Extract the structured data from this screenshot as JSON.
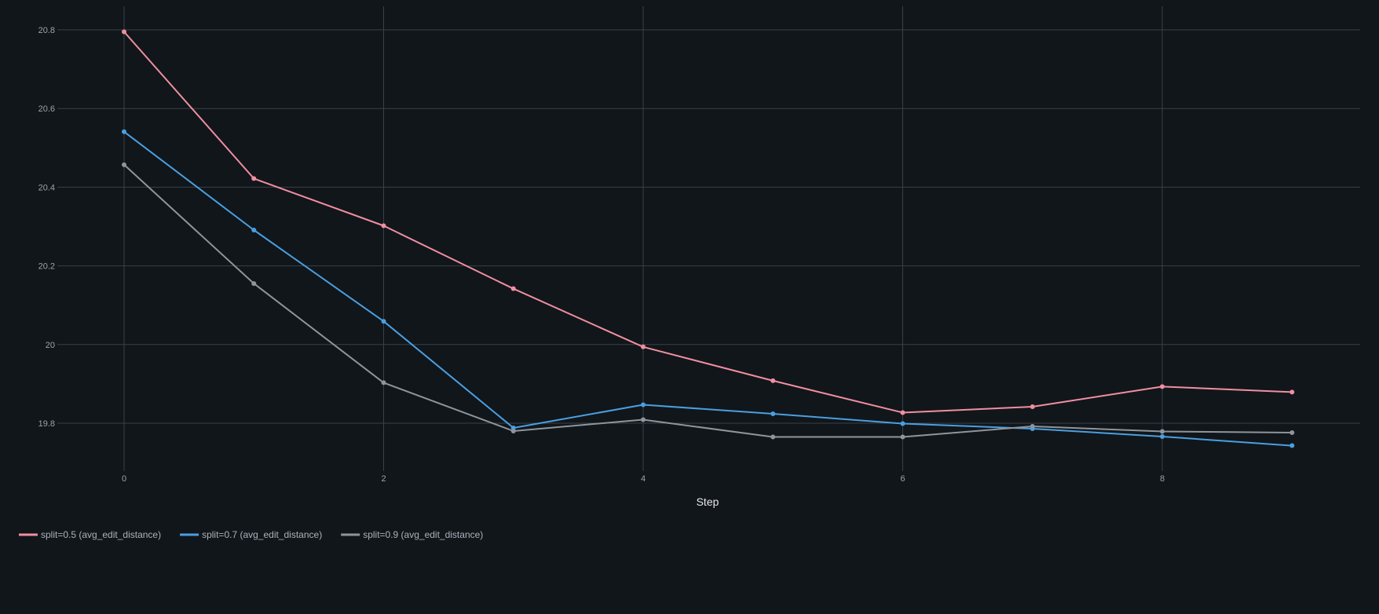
{
  "chart_data": {
    "type": "line",
    "xlabel": "Step",
    "ylabel": "",
    "x": [
      0,
      1,
      2,
      3,
      4,
      5,
      6,
      7,
      8,
      9
    ],
    "xlim": [
      -0.5,
      9.5
    ],
    "ylim": [
      19.7,
      20.87
    ],
    "xticks": [
      0,
      2,
      4,
      6,
      8
    ],
    "yticks": [
      19.8,
      20.0,
      20.2,
      20.4,
      20.6,
      20.8
    ],
    "ytick_labels": [
      "19.8",
      "20",
      "20.2",
      "20.4",
      "20.6",
      "20.8"
    ],
    "grid": true,
    "legend_position": "bottom-left",
    "series": [
      {
        "name": "split=0.5 (avg_edit_distance)",
        "color": "#f08fa0",
        "values": [
          20.795,
          20.422,
          20.302,
          20.142,
          19.994,
          19.908,
          19.827,
          19.842,
          19.893,
          19.879
        ]
      },
      {
        "name": "split=0.7 (avg_edit_distance)",
        "color": "#4a9fe0",
        "values": [
          20.541,
          20.291,
          20.059,
          19.788,
          19.847,
          19.824,
          19.799,
          19.786,
          19.766,
          19.743
        ]
      },
      {
        "name": "split=0.9 (avg_edit_distance)",
        "color": "#8e959c",
        "values": [
          20.457,
          20.155,
          19.903,
          19.78,
          19.809,
          19.765,
          19.765,
          19.792,
          19.779,
          19.776
        ]
      }
    ]
  },
  "colors": {
    "background": "#11161b",
    "grid": "#3a4048",
    "tick_text": "#9aa3ad",
    "axis_title": "#e6e9ec"
  }
}
